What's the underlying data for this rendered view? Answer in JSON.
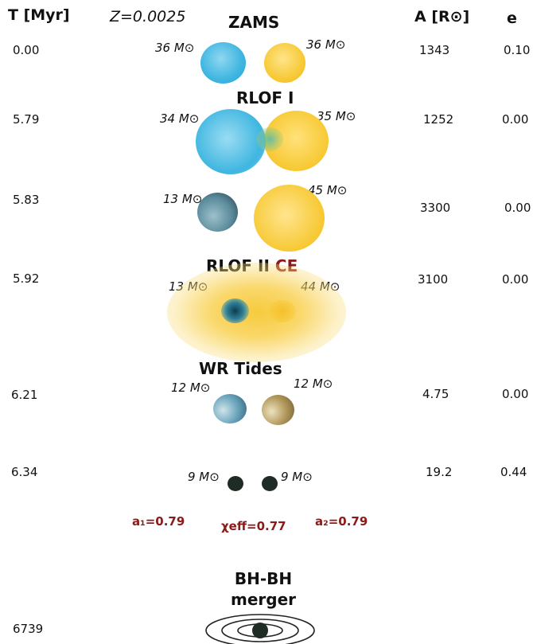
{
  "header": {
    "time": "T [Myr]",
    "metallicity": "Z=0.0025",
    "separation": "A [R⊙]",
    "eccentricity": "e"
  },
  "rows": [
    {
      "t": "0.00",
      "a": "1343",
      "e": "0.10",
      "stage": "ZAMS",
      "m1": "36 M⊙",
      "m2": "36 M⊙"
    },
    {
      "t": "5.79",
      "a": "1252",
      "e": "0.00",
      "stage": "RLOF I",
      "m1": "34 M⊙",
      "m2": "35 M⊙"
    },
    {
      "t": "5.83",
      "a": "3300",
      "e": "0.00",
      "m1": "13 M⊙",
      "m2": "45 M⊙"
    },
    {
      "t": "5.92",
      "a": "3100",
      "e": "0.00",
      "stage": "RLOF II",
      "stage_extra": "CE",
      "m1": "13 M⊙",
      "m2": "44 M⊙"
    },
    {
      "t": "6.21",
      "a": "4.75",
      "e": "0.00",
      "stage": "WR Tides",
      "m1": "12 M⊙",
      "m2": "12 M⊙"
    },
    {
      "t": "6.34",
      "a": "19.2",
      "e": "0.44",
      "m1": "9 M⊙",
      "m2": "9 M⊙"
    },
    {
      "t": "6739",
      "stage_line1": "BH-BH",
      "stage_line2": "merger"
    }
  ],
  "spins": {
    "a1": "a₁=0.79",
    "chi_eff": "χeff=0.77",
    "a2": "a₂=0.79"
  },
  "colors": {
    "blue_star": "#3fb6e0",
    "yellow_star": "#f7c832",
    "spin_text": "#8b1a1a",
    "black_hole": "#1f2b25"
  }
}
